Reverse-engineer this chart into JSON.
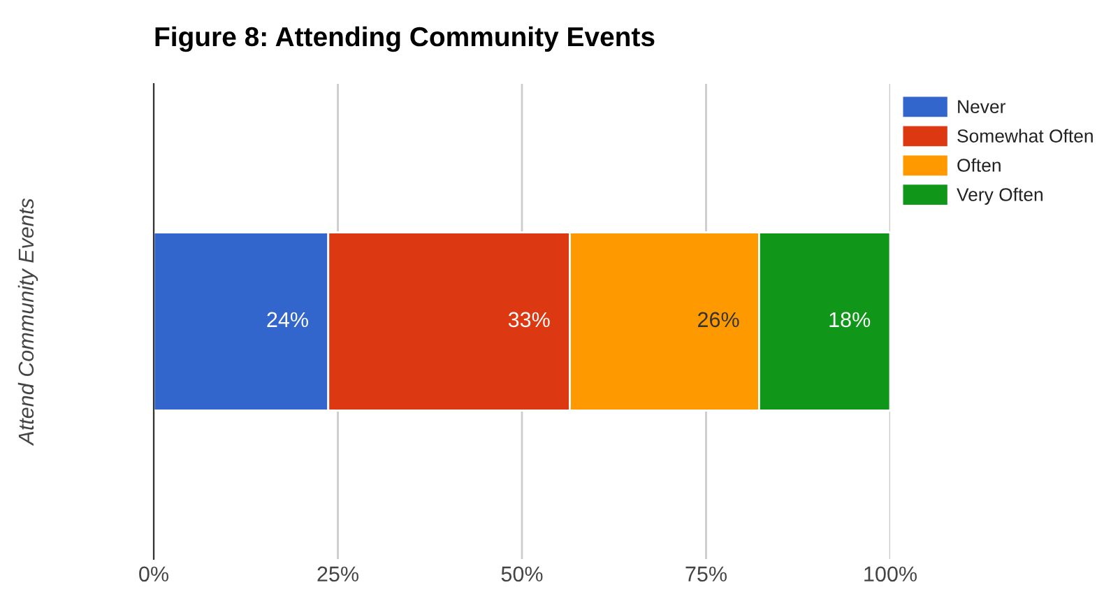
{
  "chart_data": {
    "type": "bar",
    "title": "Figure 8: Attending Community Events",
    "ylabel": "Attend Community Events",
    "orientation": "horizontal",
    "stacked": true,
    "categories": [
      null
    ],
    "series": [
      {
        "name": "Never",
        "color": "#3366cc",
        "values": [
          23.7
        ],
        "value_labels": [
          "24%"
        ]
      },
      {
        "name": "Somewhat Often",
        "color": "#dc3912",
        "values": [
          32.8
        ],
        "value_labels": [
          "33%"
        ]
      },
      {
        "name": "Often",
        "color": "#ff9900",
        "values": [
          25.7
        ],
        "value_labels": [
          "26%"
        ]
      },
      {
        "name": "Very Often",
        "color": "#109618",
        "values": [
          17.8
        ],
        "value_labels": [
          "18%"
        ]
      }
    ],
    "xlim": [
      0,
      100
    ],
    "xticks": [
      {
        "value": 0,
        "label": "0%"
      },
      {
        "value": 25,
        "label": "25%"
      },
      {
        "value": 50,
        "label": "50%"
      },
      {
        "value": 75,
        "label": "75%"
      },
      {
        "value": 100,
        "label": "100%"
      }
    ],
    "grid": "x",
    "legend": "right"
  }
}
